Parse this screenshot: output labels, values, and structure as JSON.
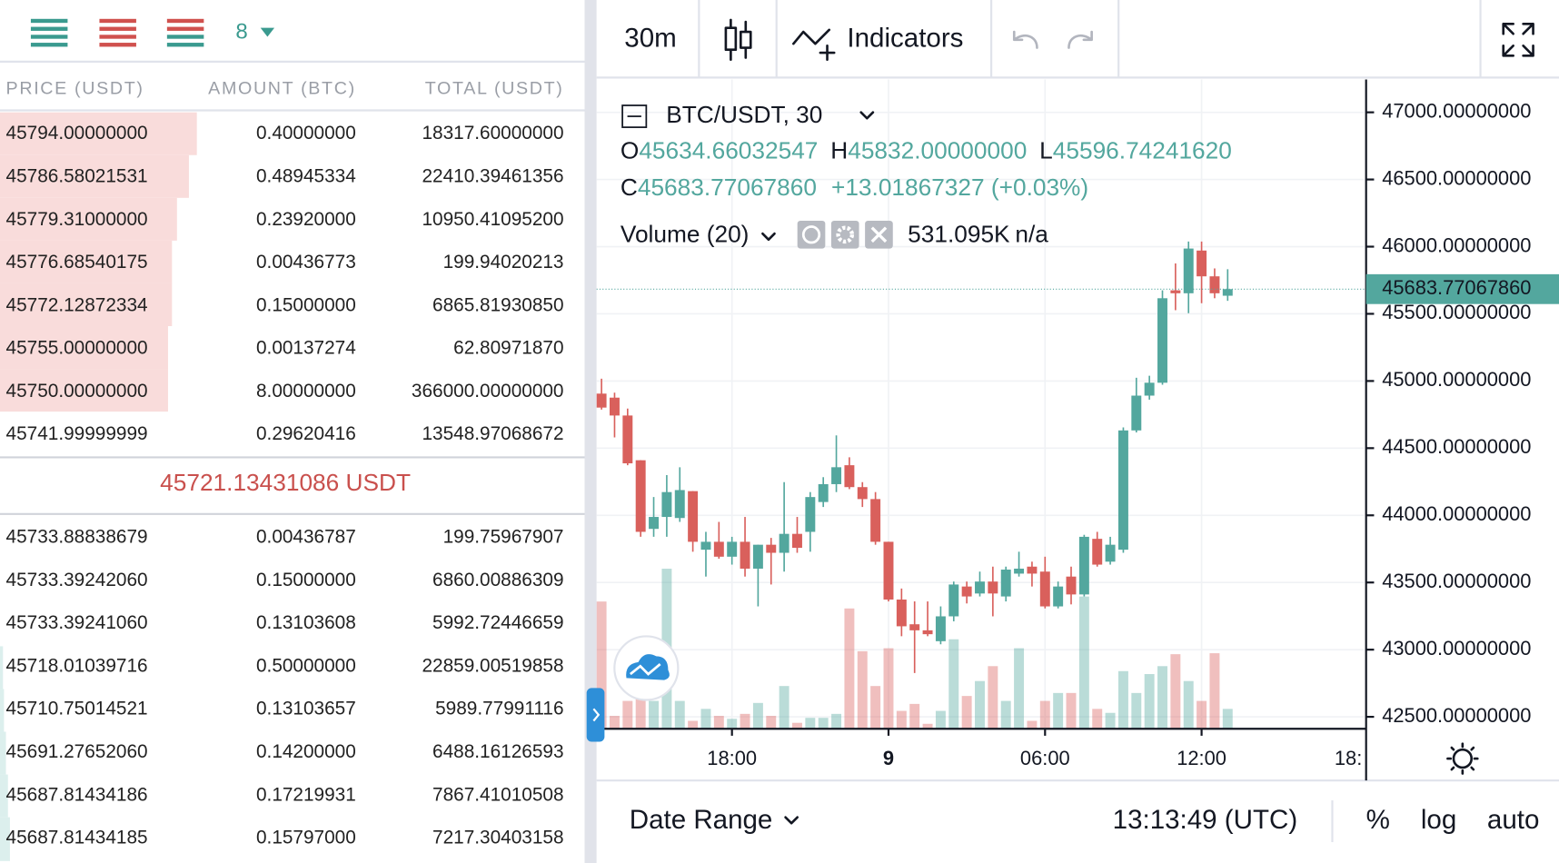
{
  "order_book": {
    "precision": "8",
    "columns": [
      "PRICE (USDT)",
      "AMOUNT (BTC)",
      "TOTAL (USDT)"
    ],
    "asks": [
      [
        "45794.00000000",
        "0.40000000",
        "18317.60000000"
      ],
      [
        "45786.58021531",
        "0.48945334",
        "22410.39461356"
      ],
      [
        "45779.31000000",
        "0.23920000",
        "10950.41095200"
      ],
      [
        "45776.68540175",
        "0.00436773",
        "199.94020213"
      ],
      [
        "45772.12872334",
        "0.15000000",
        "6865.81930850"
      ],
      [
        "45755.00000000",
        "0.00137274",
        "62.80971870"
      ],
      [
        "45750.00000000",
        "8.00000000",
        "366000.00000000"
      ],
      [
        "45741.99999999",
        "0.29620416",
        "13548.97068672"
      ]
    ],
    "last_price": "45721.13431086 USDT",
    "bids": [
      [
        "45733.88838679",
        "0.00436787",
        "199.75967907"
      ],
      [
        "45733.39242060",
        "0.15000000",
        "6860.00886309"
      ],
      [
        "45733.39241060",
        "0.13103608",
        "5992.72446659"
      ],
      [
        "45718.01039716",
        "0.50000000",
        "22859.00519858"
      ],
      [
        "45710.75014521",
        "0.13103657",
        "5989.77991116"
      ],
      [
        "45691.27652060",
        "0.14200000",
        "6488.16126593"
      ],
      [
        "45687.81434186",
        "0.17219931",
        "7867.41010508"
      ],
      [
        "45687.81434185",
        "0.15797000",
        "7217.30403158"
      ]
    ]
  },
  "toolbar": {
    "interval": "30m",
    "indicators": "Indicators"
  },
  "chart_data": {
    "type": "candlestick",
    "symbol": "BTC/USDT, 30",
    "legend": {
      "open_key": "O",
      "open": "45634.66032547",
      "high_key": "H",
      "high": "45832.00000000",
      "low_key": "L",
      "low": "45596.74241620",
      "close_key": "C",
      "close": "45683.77067860",
      "change": "+13.01867327 (+0.03%)"
    },
    "volume_study": "Volume (20)",
    "volume_value": "531.095K",
    "volume_na": "n/a",
    "colors": {
      "up": "#53a79e",
      "down": "#d9605c"
    },
    "categories": [
      null,
      null,
      null,
      null,
      null,
      null,
      null,
      null,
      null,
      null,
      "18:00",
      null,
      null,
      null,
      null,
      null,
      null,
      null,
      null,
      null,
      null,
      null,
      "9",
      null,
      null,
      null,
      null,
      null,
      null,
      null,
      null,
      null,
      null,
      null,
      "06:00",
      null,
      null,
      null,
      null,
      null,
      null,
      null,
      null,
      null,
      null,
      null,
      "12:00",
      null,
      null
    ],
    "x_edge_label": "18:",
    "open": [
      44906,
      44876,
      44743,
      44410,
      43899,
      43988,
      43980,
      44180,
      43744,
      43803,
      43692,
      43803,
      43603,
      43781,
      43721,
      43862,
      43877,
      44099,
      44232,
      44373,
      44210,
      44121,
      43803,
      43373,
      43189,
      43144,
      43063,
      43248,
      43470,
      43418,
      43507,
      43396,
      43566,
      43618,
      43581,
      43322,
      43544,
      43411,
      43825,
      43655,
      43744,
      44632,
      44891,
      44987,
      45675,
      45653,
      45971,
      45779,
      45634.66032547
    ],
    "high": [
      45017,
      44913,
      44795,
      44410,
      44136,
      44299,
      44358,
      44180,
      43877,
      43951,
      43840,
      43988,
      43781,
      43832,
      44247,
      43988,
      44173,
      44284,
      44595,
      44432,
      44247,
      44173,
      43803,
      43455,
      43359,
      43359,
      43322,
      43507,
      43507,
      43581,
      43618,
      43618,
      43729,
      43655,
      43692,
      43507,
      43618,
      43855,
      43877,
      43840,
      44654,
      45024,
      45039,
      45675,
      45875,
      46038,
      46038,
      45838,
      45832
    ],
    "low": [
      44787,
      44580,
      44373,
      43840,
      43840,
      43840,
      43951,
      43729,
      43544,
      43677,
      43633,
      43544,
      43322,
      43485,
      43581,
      43721,
      43729,
      44062,
      44173,
      44195,
      44062,
      43781,
      43359,
      43100,
      42826,
      43100,
      43040,
      43211,
      43344,
      43396,
      43248,
      43359,
      43544,
      43470,
      43307,
      43307,
      43337,
      43396,
      43618,
      43633,
      43721,
      44617,
      44861,
      44972,
      45527,
      45505,
      45579,
      45616,
      45596.7424162
    ],
    "close": [
      44802,
      44743,
      44387,
      43877,
      43988,
      44173,
      44188,
      43803,
      43803,
      43692,
      43803,
      43603,
      43781,
      43721,
      43862,
      43758,
      44136,
      44232,
      44358,
      44210,
      44121,
      43803,
      43373,
      43174,
      43144,
      43115,
      43248,
      43485,
      43396,
      43507,
      43418,
      43596,
      43603,
      43566,
      43322,
      43470,
      43411,
      43840,
      43633,
      43781,
      44632,
      44891,
      44987,
      45616,
      45653,
      45986,
      45779,
      45653,
      45683.7706786
    ],
    "volume": [
      3399000,
      345000,
      744000,
      2071000,
      744000,
      4275000,
      744000,
      212000,
      531000,
      345000,
      266000,
      398000,
      690000,
      345000,
      1142000,
      159000,
      292000,
      292000,
      398000,
      3213000,
      2071000,
      1142000,
      2151000,
      478000,
      664000,
      133000,
      478000,
      2390000,
      876000,
      1275000,
      1673000,
      744000,
      2151000,
      212000,
      744000,
      956000,
      956000,
      3532000,
      531000,
      425000,
      1540000,
      956000,
      1461000,
      1673000,
      1992000,
      1275000,
      744000,
      2018000,
      531095
    ],
    "ylim": [
      42411,
      47244
    ],
    "yticks": [
      {
        "value": 42500,
        "label": "42500.00000000"
      },
      {
        "value": 43000,
        "label": "43000.00000000"
      },
      {
        "value": 43500,
        "label": "43500.00000000"
      },
      {
        "value": 44000,
        "label": "44000.00000000"
      },
      {
        "value": 44500,
        "label": "44500.00000000"
      },
      {
        "value": 45000,
        "label": "45000.00000000"
      },
      {
        "value": 45500,
        "label": "45500.00000000"
      },
      {
        "value": 46000,
        "label": "46000.00000000"
      },
      {
        "value": 46500,
        "label": "46500.00000000"
      },
      {
        "value": 47000,
        "label": "47000.00000000"
      }
    ],
    "grid": true,
    "price_label": {
      "value": 45683.7706786,
      "label": "45683.77067860"
    }
  },
  "footer": {
    "date_range": "Date Range",
    "clock": "13:13:49 (UTC)",
    "percent": "%",
    "log": "log",
    "auto": "auto"
  }
}
